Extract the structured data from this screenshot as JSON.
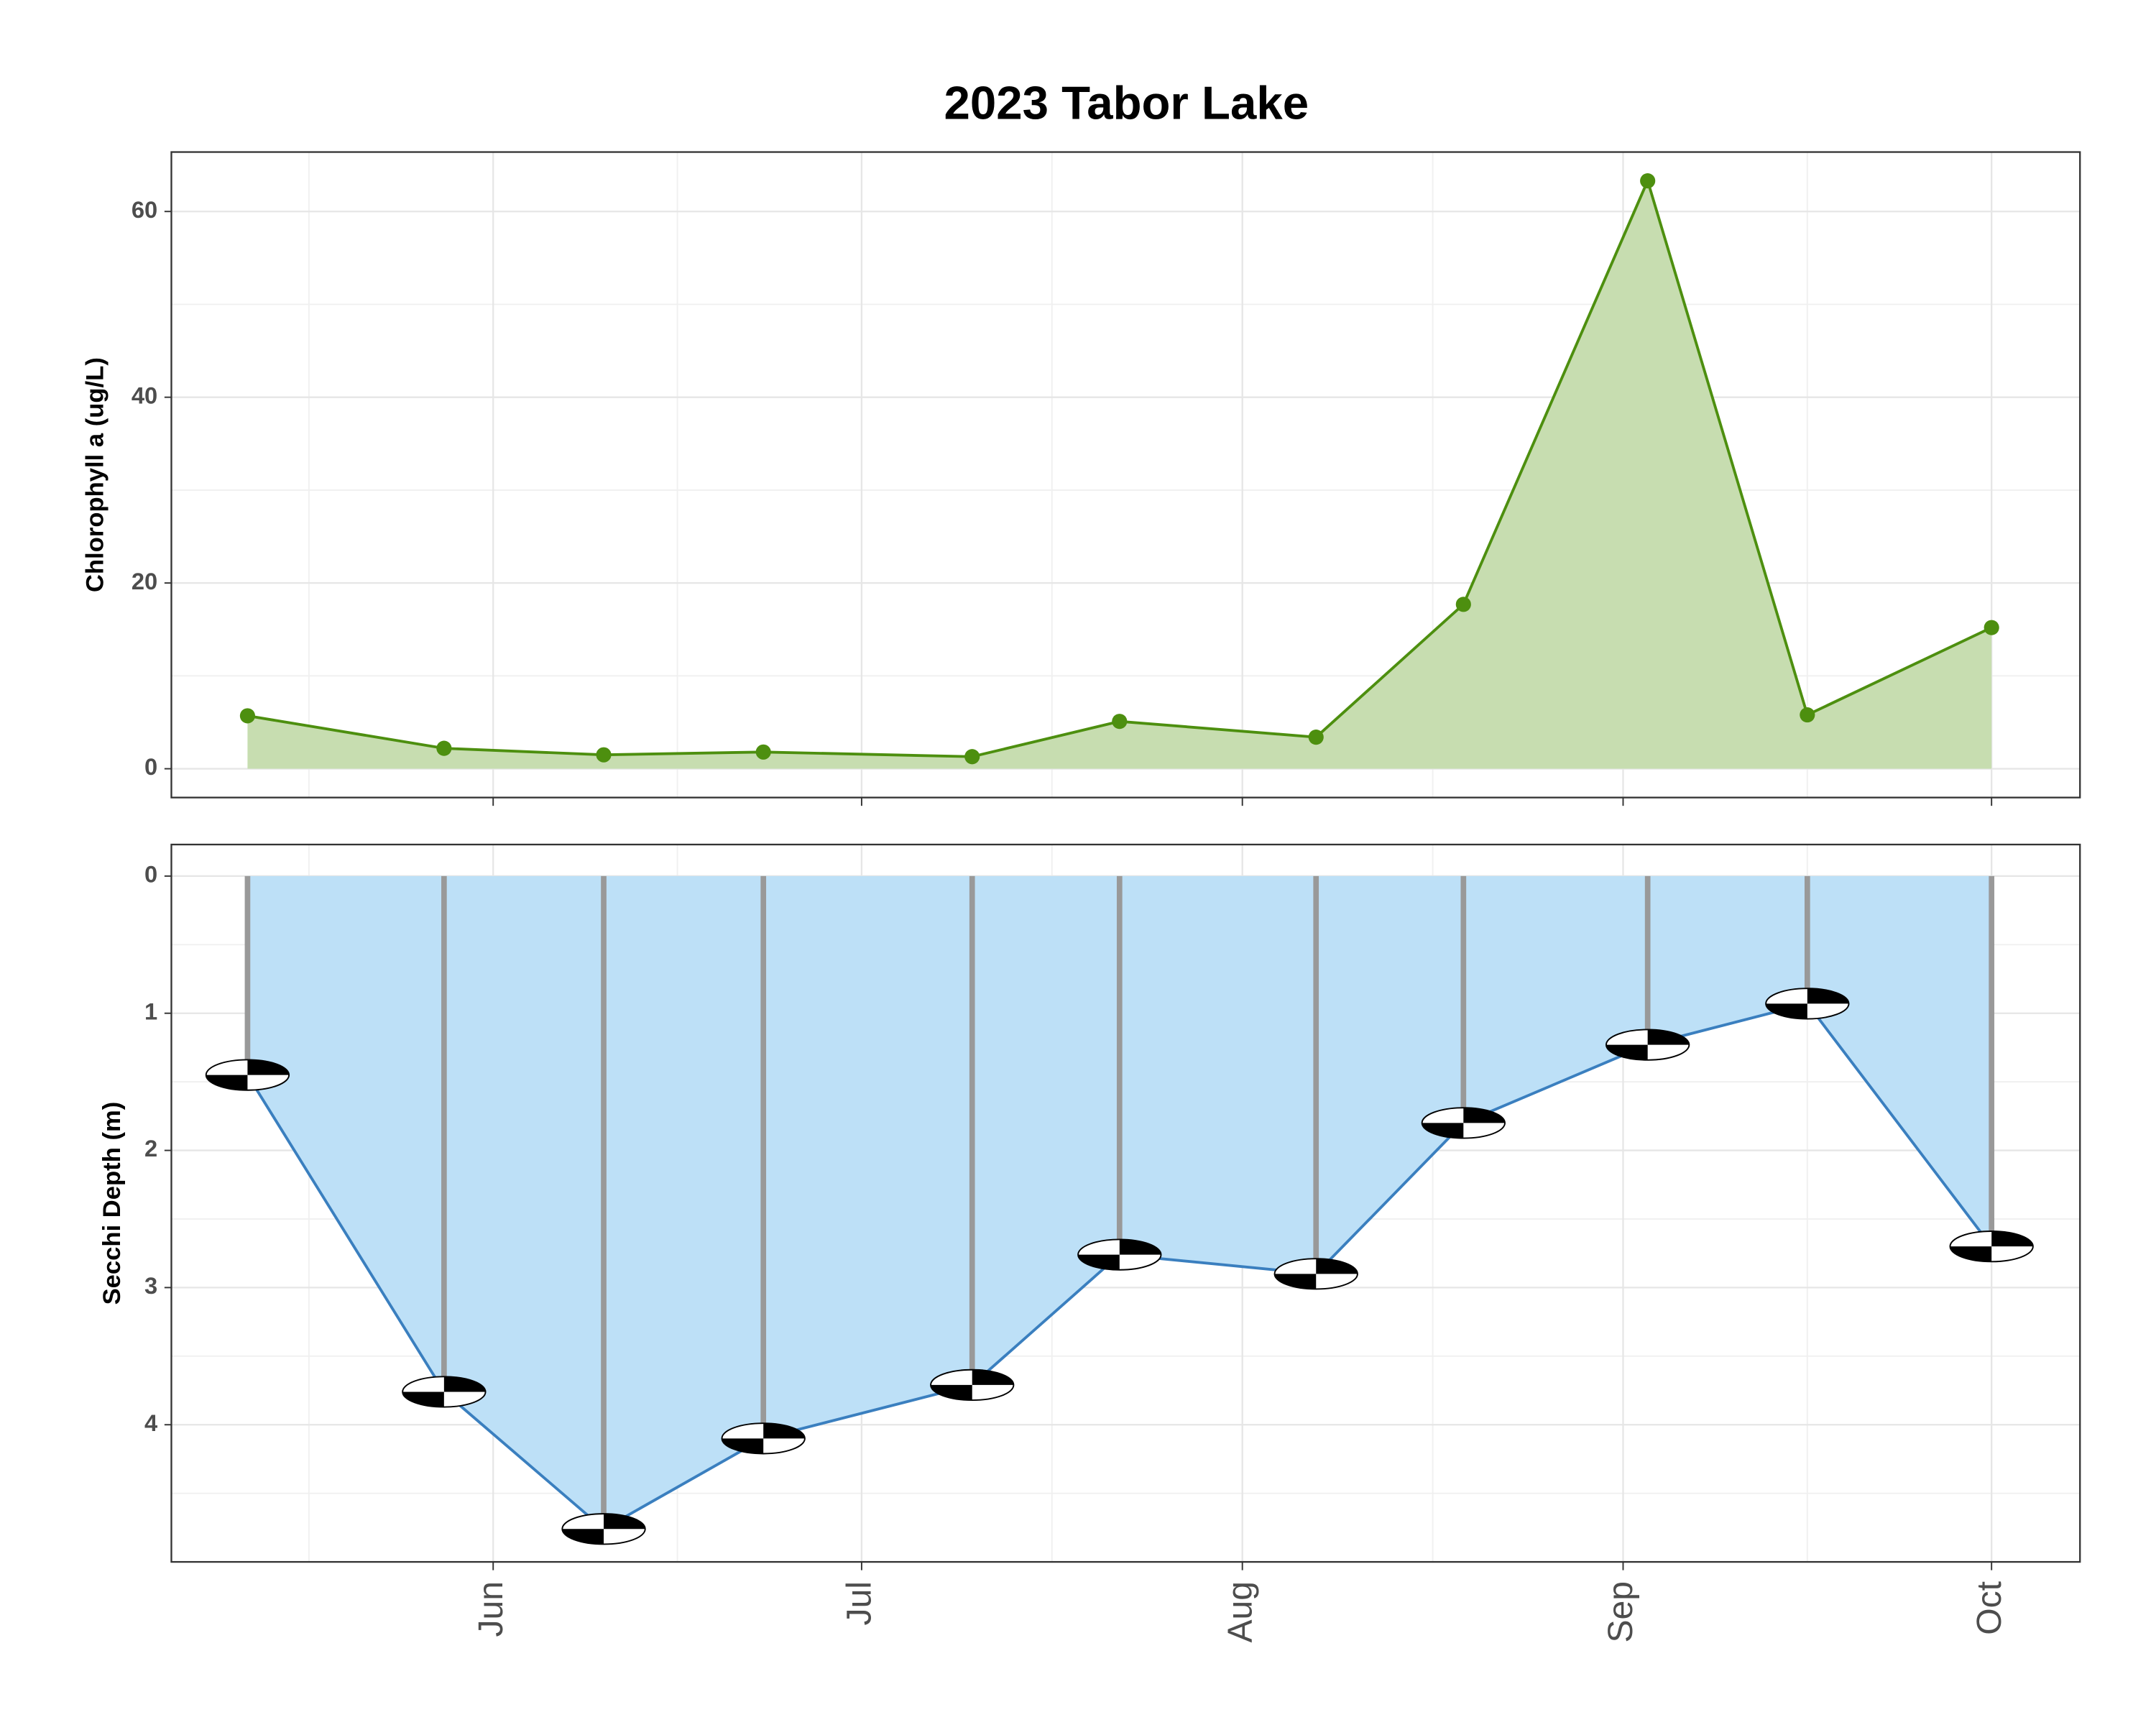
{
  "title": "2023 Tabor Lake",
  "chart_data": [
    {
      "type": "area",
      "y_label": "Chlorophyll a (ug/L)",
      "x": [
        132,
        148,
        161,
        174,
        191,
        203,
        219,
        231,
        246,
        259,
        274
      ],
      "values": [
        5.7,
        2.2,
        1.5,
        1.8,
        1.3,
        5.1,
        3.4,
        17.7,
        63.3,
        5.8,
        15.2
      ],
      "color": "#4d8f0f",
      "fill": "#c7ddb0",
      "xlim": [
        125.8,
        281.2
      ],
      "xticks": [
        152,
        182,
        213,
        244,
        274
      ],
      "ylim": [
        -3.1,
        66.4
      ],
      "yticks": [
        0,
        20,
        40,
        60
      ],
      "grid": true
    },
    {
      "type": "secchi",
      "y_label": "Secchi Depth (m)",
      "x": [
        132,
        148,
        161,
        174,
        191,
        203,
        219,
        231,
        246,
        259,
        274
      ],
      "values": [
        1.45,
        3.76,
        4.76,
        4.1,
        3.71,
        2.76,
        2.9,
        1.8,
        1.23,
        0.93,
        2.7
      ],
      "color": "#3a7fbf",
      "fill": "#bde0f7",
      "rod_color": "#999999",
      "xlim": [
        125.8,
        281.2
      ],
      "xticks": [
        {
          "value": 152,
          "label": "Jun"
        },
        {
          "value": 182,
          "label": "Jul"
        },
        {
          "value": 213,
          "label": "Aug"
        },
        {
          "value": 244,
          "label": "Sep"
        },
        {
          "value": 274,
          "label": "Oct"
        }
      ],
      "ylim": [
        5.0,
        -0.23
      ],
      "yticks": [
        0,
        1,
        2,
        3,
        4
      ],
      "grid": true
    }
  ]
}
